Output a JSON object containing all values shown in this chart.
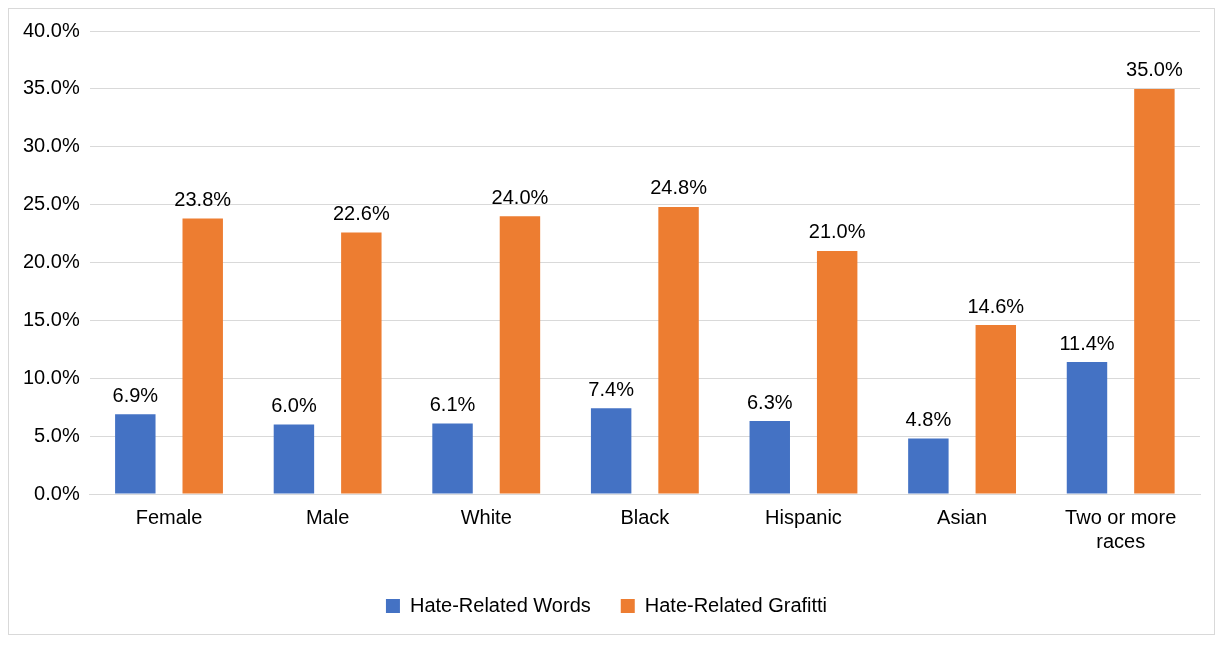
{
  "chart_data": {
    "type": "bar",
    "categories": [
      "Female",
      "Male",
      "White",
      "Black",
      "Hispanic",
      "Asian",
      "Two or more races"
    ],
    "series": [
      {
        "name": "Hate-Related Words",
        "color": "#4472c4",
        "values": [
          6.9,
          6.0,
          6.1,
          7.4,
          6.3,
          4.8,
          11.4
        ],
        "value_labels": [
          "6.9%",
          "6.0%",
          "6.1%",
          "7.4%",
          "6.3%",
          "4.8%",
          "11.4%"
        ]
      },
      {
        "name": "Hate-Related Grafitti",
        "color": "#ed7d31",
        "values": [
          23.8,
          22.6,
          24.0,
          24.8,
          21.0,
          14.6,
          35.0
        ],
        "value_labels": [
          "23.8%",
          "22.6%",
          "24.0%",
          "24.8%",
          "21.0%",
          "14.6%",
          "35.0%"
        ]
      }
    ],
    "ylim": [
      0,
      40
    ],
    "yticks": [
      {
        "value": 0,
        "label": "0.0%"
      },
      {
        "value": 5,
        "label": "5.0%"
      },
      {
        "value": 10,
        "label": "10.0%"
      },
      {
        "value": 15,
        "label": "15.0%"
      },
      {
        "value": 20,
        "label": "20.0%"
      },
      {
        "value": 25,
        "label": "25.0%"
      },
      {
        "value": 30,
        "label": "30.0%"
      },
      {
        "value": 35,
        "label": "35.0%"
      },
      {
        "value": 40,
        "label": "40.0%"
      }
    ],
    "grid": "y",
    "legend": "bottom"
  }
}
